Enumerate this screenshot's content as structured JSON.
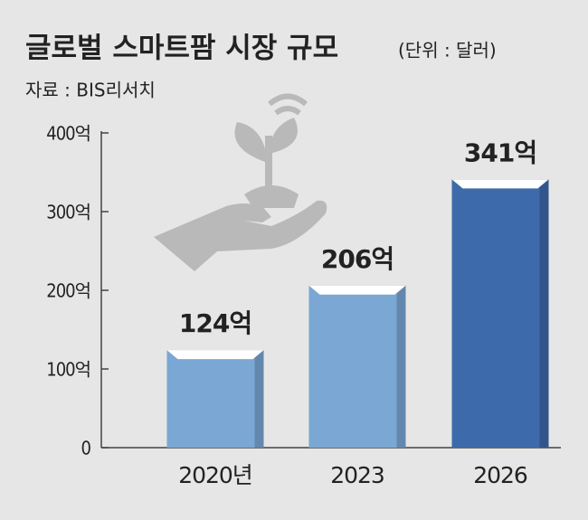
{
  "chart_data": {
    "type": "bar",
    "title": "글로벌 스마트팜 시장 규모",
    "subtitle": "(단위 : 달러)",
    "source": "자료 : BIS리서치",
    "categories": [
      "2020년",
      "2023",
      "2026"
    ],
    "values": [
      124,
      206,
      341
    ],
    "value_labels": [
      "124억",
      "206억",
      "341억"
    ],
    "colors": [
      "#7aa7d3",
      "#7aa7d3",
      "#3d6aaa"
    ],
    "ylim": [
      0,
      400
    ],
    "yticks": [
      0,
      {
        "value": 100,
        "label": "100억"
      },
      {
        "value": 200,
        "label": "200억"
      },
      {
        "value": 300,
        "label": "300억"
      },
      {
        "value": 400,
        "label": "400억"
      }
    ]
  }
}
